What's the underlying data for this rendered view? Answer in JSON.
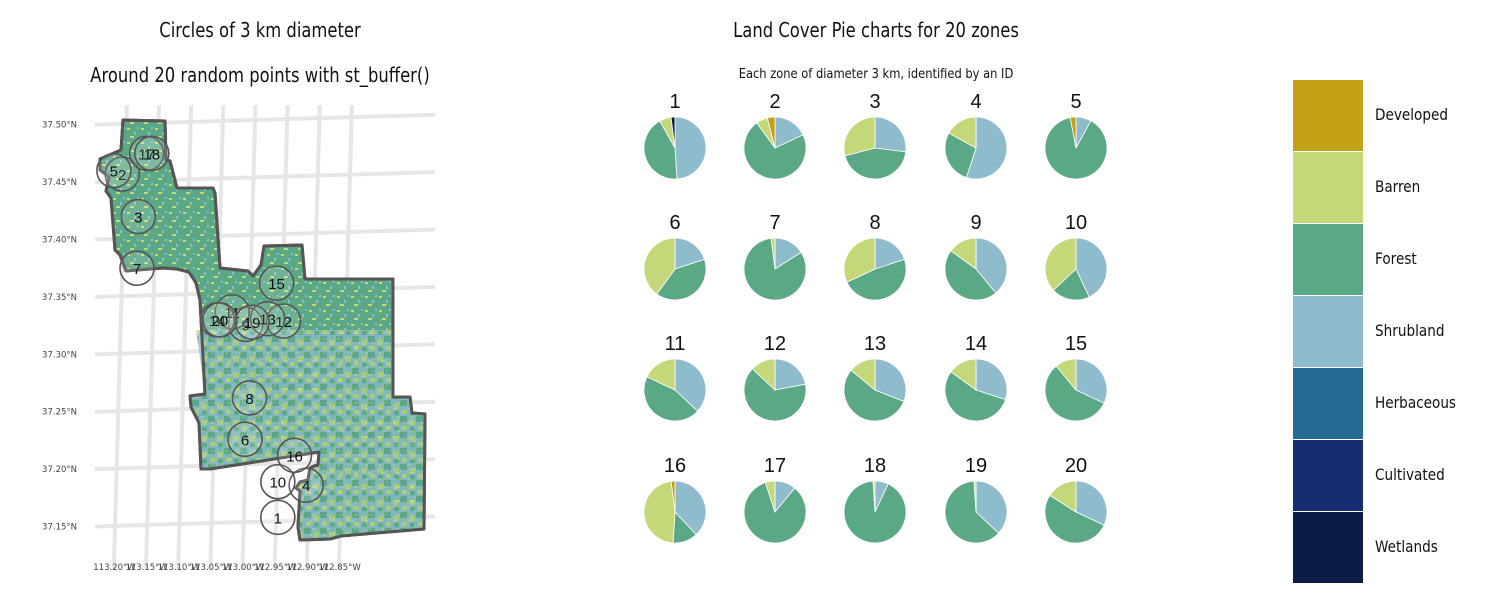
{
  "left_panel": {
    "title": "Circles of 3 km diameter",
    "subtitle": "Around 20 random points with st_buffer()"
  },
  "right_panel": {
    "title": "Land Cover Pie charts for 20 zones",
    "subtitle": "Each zone of diameter 3 km, identified by an ID"
  },
  "colors": {
    "Developed": "#c4a017",
    "Barren": "#c4d87a",
    "Forest": "#5aa885",
    "Shrubland": "#8fbccd",
    "Herbaceous": "#246a92",
    "Cultivated": "#172d72",
    "Wetlands": "#0d1c45"
  },
  "chart_data": [
    {
      "type": "scatter",
      "title": "Circles of 3 km diameter",
      "subtitle": "Around 20 random points with st_buffer()",
      "xlim": [
        -113.22,
        -112.85
      ],
      "ylim": [
        37.13,
        37.51
      ],
      "x_ticks": [
        -113.2,
        -113.15,
        -113.1,
        -113.05,
        -113.0,
        -112.95,
        -112.9,
        -112.85
      ],
      "x_tick_labels": [
        "113.20°W",
        "113.15°W",
        "113.10°W",
        "113.05°W",
        "113.00°W",
        "112.95°W",
        "112.90°W",
        "112.85°W"
      ],
      "y_ticks": [
        37.15,
        37.2,
        37.25,
        37.3,
        37.35,
        37.4,
        37.45,
        37.5
      ],
      "y_tick_labels": [
        "37.15°N",
        "37.20°N",
        "37.25°N",
        "37.30°N",
        "37.35°N",
        "37.40°N",
        "37.45°N",
        "37.50°N"
      ],
      "grid": true,
      "points": [
        {
          "id": "1",
          "lon": -112.946,
          "lat": 37.158
        },
        {
          "id": "2",
          "lon": -113.188,
          "lat": 37.457
        },
        {
          "id": "3",
          "lon": -113.163,
          "lat": 37.42
        },
        {
          "id": "4",
          "lon": -112.902,
          "lat": 37.186
        },
        {
          "id": "5",
          "lon": -113.201,
          "lat": 37.46
        },
        {
          "id": "6",
          "lon": -112.997,
          "lat": 37.226
        },
        {
          "id": "7",
          "lon": -113.165,
          "lat": 37.375
        },
        {
          "id": "8",
          "lon": -112.99,
          "lat": 37.262
        },
        {
          "id": "9",
          "lon": -112.996,
          "lat": 37.326
        },
        {
          "id": "10",
          "lon": -112.946,
          "lat": 37.189
        },
        {
          "id": "11",
          "lon": -113.017,
          "lat": 37.337
        },
        {
          "id": "12",
          "lon": -112.937,
          "lat": 37.329
        },
        {
          "id": "13",
          "lon": -112.962,
          "lat": 37.331
        },
        {
          "id": "14",
          "lon": -113.04,
          "lat": 37.33
        },
        {
          "id": "15",
          "lon": -112.948,
          "lat": 37.362
        },
        {
          "id": "16",
          "lon": -112.92,
          "lat": 37.212
        },
        {
          "id": "17",
          "lon": -113.15,
          "lat": 37.475
        },
        {
          "id": "18",
          "lon": -113.142,
          "lat": 37.475
        },
        {
          "id": "19",
          "lon": -112.986,
          "lat": 37.328
        },
        {
          "id": "20",
          "lon": -113.036,
          "lat": 37.33
        }
      ]
    },
    {
      "type": "pie",
      "title": "Land Cover Pie charts for 20 zones",
      "subtitle": "Each zone of diameter 3 km, identified by an ID",
      "categories": [
        "Shrubland",
        "Forest",
        "Barren",
        "Developed",
        "Wetlands"
      ],
      "legend": [
        "Developed",
        "Barren",
        "Forest",
        "Shrubland",
        "Herbaceous",
        "Cultivated",
        "Wetlands"
      ],
      "legend_position": "right",
      "zones": [
        {
          "id": "1",
          "values": [
            0.48,
            0.42,
            0.06,
            0.0,
            0.02
          ]
        },
        {
          "id": "2",
          "values": [
            0.18,
            0.72,
            0.06,
            0.04,
            0.0
          ]
        },
        {
          "id": "3",
          "values": [
            0.27,
            0.44,
            0.29,
            0.0,
            0.0
          ]
        },
        {
          "id": "4",
          "values": [
            0.55,
            0.28,
            0.17,
            0.0,
            0.0
          ]
        },
        {
          "id": "5",
          "values": [
            0.08,
            0.89,
            0.0,
            0.03,
            0.0
          ]
        },
        {
          "id": "6",
          "values": [
            0.2,
            0.4,
            0.4,
            0.0,
            0.0
          ]
        },
        {
          "id": "7",
          "values": [
            0.16,
            0.82,
            0.02,
            0.0,
            0.0
          ]
        },
        {
          "id": "8",
          "values": [
            0.2,
            0.48,
            0.32,
            0.0,
            0.0
          ]
        },
        {
          "id": "9",
          "values": [
            0.39,
            0.46,
            0.15,
            0.0,
            0.0
          ]
        },
        {
          "id": "10",
          "values": [
            0.43,
            0.2,
            0.37,
            0.0,
            0.0
          ]
        },
        {
          "id": "11",
          "values": [
            0.37,
            0.45,
            0.18,
            0.0,
            0.0
          ]
        },
        {
          "id": "12",
          "values": [
            0.22,
            0.65,
            0.13,
            0.0,
            0.0
          ]
        },
        {
          "id": "13",
          "values": [
            0.31,
            0.55,
            0.14,
            0.0,
            0.0
          ]
        },
        {
          "id": "14",
          "values": [
            0.3,
            0.55,
            0.15,
            0.0,
            0.0
          ]
        },
        {
          "id": "15",
          "values": [
            0.32,
            0.57,
            0.11,
            0.0,
            0.0
          ]
        },
        {
          "id": "16",
          "values": [
            0.38,
            0.13,
            0.47,
            0.02,
            0.0
          ]
        },
        {
          "id": "17",
          "values": [
            0.11,
            0.84,
            0.05,
            0.0,
            0.0
          ]
        },
        {
          "id": "18",
          "values": [
            0.07,
            0.92,
            0.01,
            0.0,
            0.0
          ]
        },
        {
          "id": "19",
          "values": [
            0.37,
            0.62,
            0.01,
            0.0,
            0.0
          ]
        },
        {
          "id": "20",
          "values": [
            0.32,
            0.52,
            0.16,
            0.0,
            0.0
          ]
        }
      ]
    }
  ]
}
